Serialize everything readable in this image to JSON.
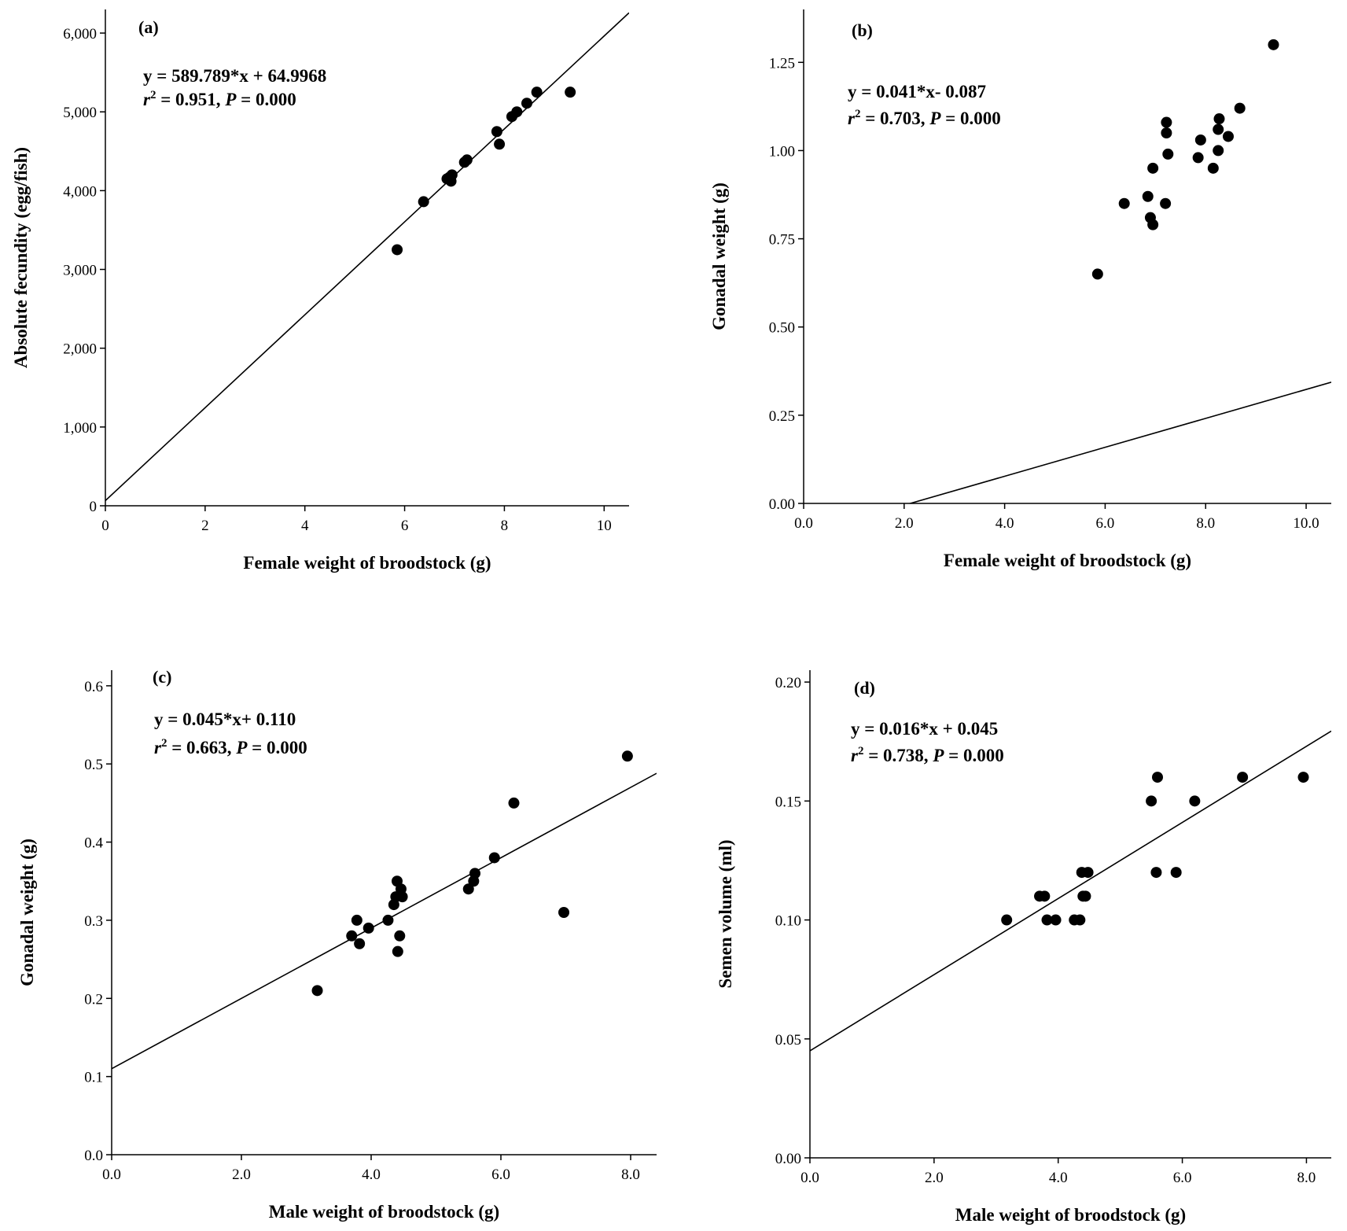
{
  "chart_data": [
    {
      "type": "scatter",
      "panel_label": "(a)",
      "equation": "y = 589.789*x + 64.9968",
      "r2_value": " = 0.951, ",
      "p_value": " = 0.000",
      "xlabel": "Female weight of broodstock (g)",
      "ylabel": "Absolute fecundity (egg/fish)",
      "xlim": [
        0,
        10.5
      ],
      "ylim": [
        0,
        6300
      ],
      "xticks": [
        0,
        2,
        4,
        6,
        8,
        10
      ],
      "xtick_labels": [
        "0",
        "2",
        "4",
        "6",
        "8",
        "10"
      ],
      "yticks": [
        0,
        1000,
        2000,
        3000,
        4000,
        5000,
        6000
      ],
      "ytick_labels": [
        "0",
        "1,000",
        "2,000",
        "3,000",
        "4,000",
        "5,000",
        "6,000"
      ],
      "fit": {
        "slope": 589.789,
        "intercept": 64.9968
      },
      "x": [
        5.85,
        6.38,
        6.85,
        6.9,
        6.93,
        6.95,
        7.2,
        7.25,
        7.85,
        7.9,
        8.15,
        8.25,
        8.45,
        8.65,
        9.32
      ],
      "y": [
        3250,
        3860,
        4150,
        4170,
        4120,
        4200,
        4360,
        4390,
        4750,
        4590,
        4940,
        5000,
        5110,
        5250,
        5250
      ]
    },
    {
      "type": "scatter",
      "panel_label": "(b)",
      "equation": "y = 0.041*x- 0.087",
      "r2_value": " = 0.703, ",
      "p_value": " = 0.000",
      "xlabel": "Female weight of broodstock (g)",
      "ylabel": "Gonadal weight (g)",
      "xlim": [
        0,
        10.5
      ],
      "ylim": [
        0,
        1.4
      ],
      "xticks": [
        0,
        2,
        4,
        6,
        8,
        10
      ],
      "xtick_labels": [
        "0.0",
        "2.0",
        "4.0",
        "6.0",
        "8.0",
        "10.0"
      ],
      "yticks": [
        0,
        0.25,
        0.5,
        0.75,
        1.0,
        1.25
      ],
      "ytick_labels": [
        "0.00",
        "0.25",
        "0.50",
        "0.75",
        "1.00",
        "1.25"
      ],
      "fit": {
        "slope": 0.041,
        "intercept": -0.087
      },
      "x": [
        5.85,
        6.38,
        6.85,
        6.9,
        6.95,
        6.95,
        7.2,
        7.22,
        7.22,
        7.25,
        7.85,
        7.9,
        8.15,
        8.25,
        8.25,
        8.27,
        8.45,
        8.68,
        9.35
      ],
      "y": [
        0.65,
        0.85,
        0.87,
        0.81,
        0.79,
        0.95,
        0.85,
        1.05,
        1.08,
        0.99,
        0.98,
        1.03,
        0.95,
        1.0,
        1.06,
        1.09,
        1.04,
        1.12,
        1.3
      ]
    },
    {
      "type": "scatter",
      "panel_label": "(c)",
      "equation": "y = 0.045*x+ 0.110",
      "r2_value": " = 0.663, ",
      "p_value": " = 0.000",
      "xlabel": "Male weight of broodstock (g)",
      "ylabel": "Gonadal weight (g)",
      "xlim": [
        0,
        8.4
      ],
      "ylim": [
        0,
        0.62
      ],
      "xticks": [
        0,
        2,
        4,
        6,
        8
      ],
      "xtick_labels": [
        "0.0",
        "2.0",
        "4.0",
        "6.0",
        "8.0"
      ],
      "yticks": [
        0,
        0.1,
        0.2,
        0.3,
        0.4,
        0.5,
        0.6
      ],
      "ytick_labels": [
        "0.0",
        "0.1",
        "0.2",
        "0.3",
        "0.4",
        "0.5",
        "0.6"
      ],
      "fit": {
        "slope": 0.045,
        "intercept": 0.11
      },
      "x": [
        3.17,
        3.7,
        3.78,
        3.82,
        3.96,
        4.26,
        4.35,
        4.38,
        4.4,
        4.41,
        4.44,
        4.46,
        4.48,
        5.5,
        5.58,
        5.6,
        5.9,
        6.2,
        6.97,
        7.95
      ],
      "y": [
        0.21,
        0.28,
        0.3,
        0.27,
        0.29,
        0.3,
        0.32,
        0.33,
        0.35,
        0.26,
        0.28,
        0.34,
        0.33,
        0.34,
        0.35,
        0.36,
        0.38,
        0.45,
        0.31,
        0.51
      ]
    },
    {
      "type": "scatter",
      "panel_label": "(d)",
      "equation": "y = 0.016*x + 0.045",
      "r2_value": " = 0.738, ",
      "p_value": " = 0.000",
      "xlabel": "Male weight of broodstock (g)",
      "ylabel": "Semen volume (ml)",
      "xlim": [
        0,
        8.4
      ],
      "ylim": [
        0,
        0.205
      ],
      "xticks": [
        0,
        2,
        4,
        6,
        8
      ],
      "xtick_labels": [
        "0.0",
        "2.0",
        "4.0",
        "6.0",
        "8.0"
      ],
      "yticks": [
        0,
        0.05,
        0.1,
        0.15,
        0.2
      ],
      "ytick_labels": [
        "0.00",
        "0.05",
        "0.10",
        "0.15",
        "0.20"
      ],
      "fit": {
        "slope": 0.016,
        "intercept": 0.045
      },
      "x": [
        3.17,
        3.7,
        3.78,
        3.82,
        3.96,
        4.26,
        4.35,
        4.38,
        4.4,
        4.44,
        4.48,
        5.5,
        5.58,
        5.6,
        5.9,
        6.2,
        6.97,
        7.95
      ],
      "y": [
        0.1,
        0.11,
        0.11,
        0.1,
        0.1,
        0.1,
        0.1,
        0.12,
        0.11,
        0.11,
        0.12,
        0.15,
        0.12,
        0.16,
        0.12,
        0.15,
        0.16,
        0.16
      ]
    }
  ]
}
